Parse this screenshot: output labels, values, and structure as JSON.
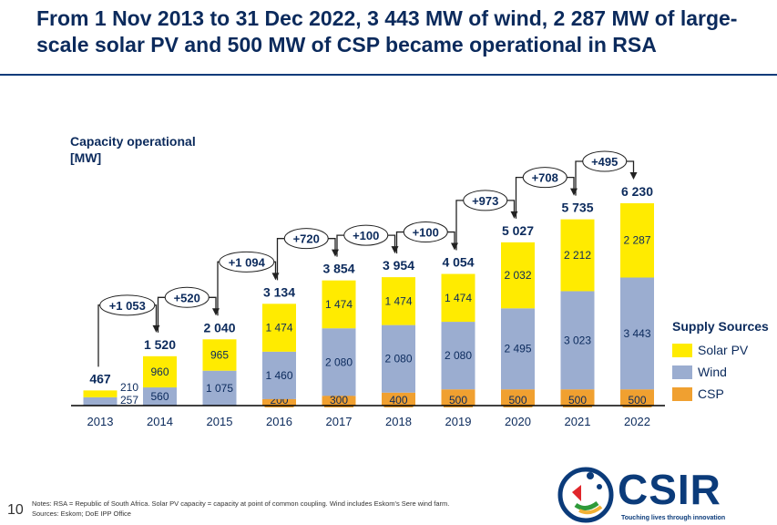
{
  "title": "From 1 Nov 2013 to 31 Dec 2022, 3 443 MW of wind, 2 287 MW of large-scale solar PV and 500 MW of CSP became operational in RSA",
  "page_number": "10",
  "notes": "Notes: RSA = Republic of South Africa. Solar PV capacity = capacity at point of common coupling. Wind includes Eskom's Sere wind farm.",
  "sources": "Sources: Eskom; DoE IPP Office",
  "logo": {
    "name": "CSIR",
    "tagline": "Touching lives through innovation"
  },
  "chart_data": {
    "type": "bar",
    "stacked": true,
    "ylabel_line1": "Capacity operational",
    "ylabel_line2": "[MW]",
    "categories": [
      "2013",
      "2014",
      "2015",
      "2016",
      "2017",
      "2018",
      "2019",
      "2020",
      "2021",
      "2022"
    ],
    "series": [
      {
        "name": "CSP",
        "color": "#f0a030",
        "values": [
          0,
          0,
          0,
          200,
          300,
          400,
          500,
          500,
          500,
          500
        ],
        "labels": [
          "",
          "",
          "",
          "200",
          "300",
          "400",
          "500",
          "500",
          "500",
          "500"
        ]
      },
      {
        "name": "Wind",
        "color": "#9badd0",
        "values": [
          257,
          560,
          1075,
          1460,
          2080,
          2080,
          2080,
          2495,
          3023,
          3443
        ],
        "labels": [
          "257",
          "560",
          "1 075",
          "1 460",
          "2 080",
          "2 080",
          "2 080",
          "2 495",
          "3 023",
          "3 443"
        ]
      },
      {
        "name": "Solar PV",
        "color": "#ffeb00",
        "values": [
          210,
          960,
          965,
          1474,
          1474,
          1474,
          1474,
          2032,
          2212,
          2287
        ],
        "labels": [
          "210",
          "960",
          "965",
          "1 474",
          "1 474",
          "1 474",
          "1 474",
          "2 032",
          "2 212",
          "2 287"
        ]
      }
    ],
    "totals": [
      "467",
      "1 520",
      "2 040",
      "3 134",
      "3 854",
      "3 954",
      "4 054",
      "5 027",
      "5 735",
      "6 230"
    ],
    "total_values": [
      467,
      1520,
      2040,
      3134,
      3854,
      3954,
      4054,
      5027,
      5735,
      6230
    ],
    "deltas": [
      "+1 053",
      "+520",
      "+1 094",
      "+720",
      "+100",
      "+100",
      "+973",
      "+708",
      "+495"
    ],
    "legend_title": "Supply Sources",
    "legend": [
      "Solar PV",
      "Wind",
      "CSP"
    ],
    "legend_colors": [
      "#ffeb00",
      "#9badd0",
      "#f0a030"
    ],
    "ylim": [
      0,
      6230
    ]
  }
}
